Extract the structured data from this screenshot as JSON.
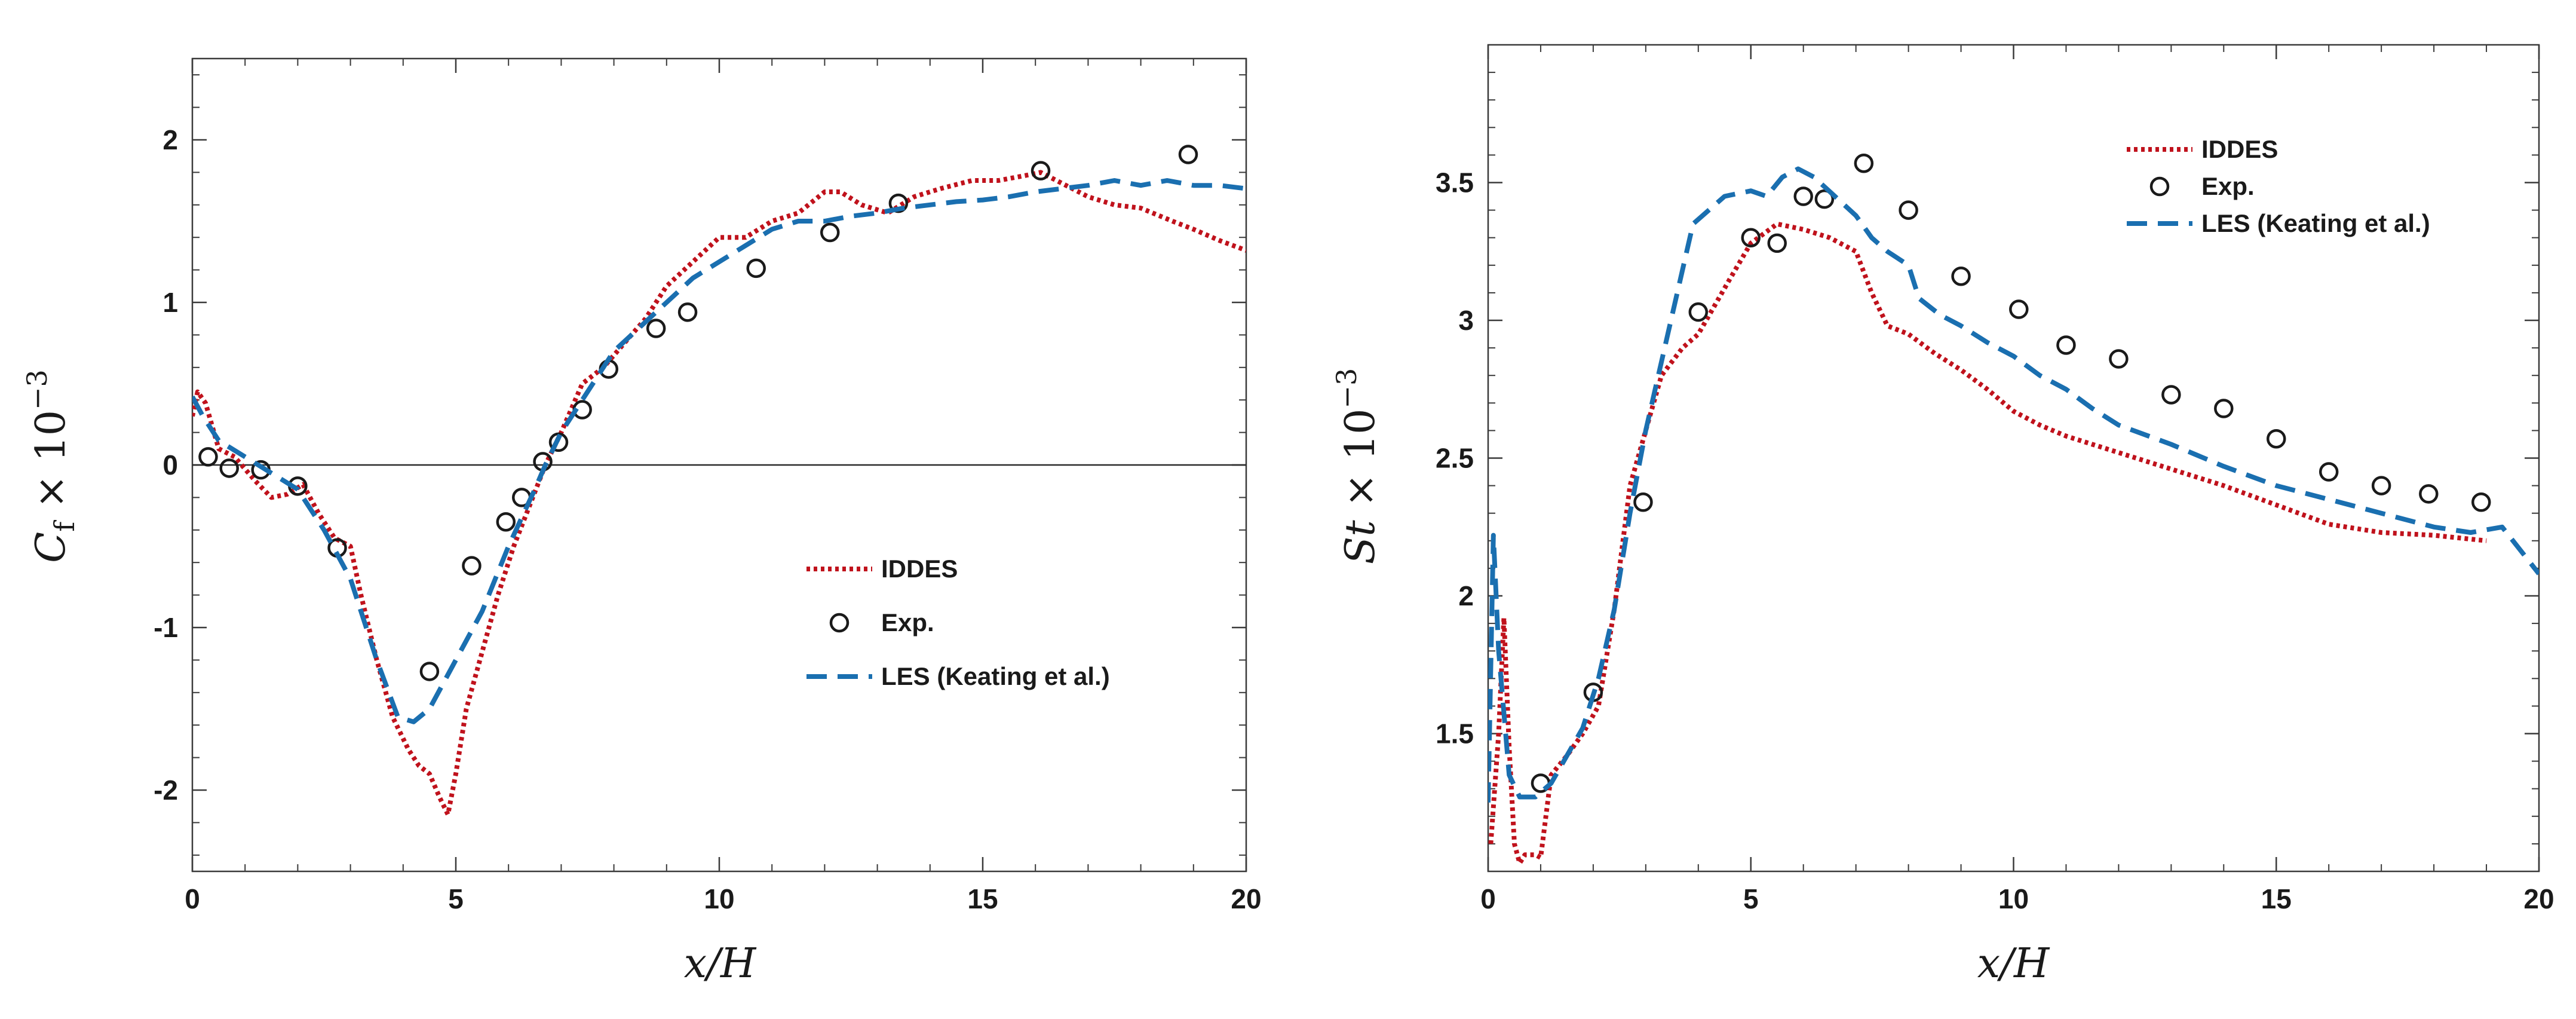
{
  "chart_data": [
    {
      "type": "line",
      "id": "cf",
      "title": "",
      "xlabel": "x/H",
      "ylabel": "C_f × 10^-3",
      "ylabel_parts": {
        "symbol": "C",
        "sub": "f",
        "times": "×",
        "base": "10",
        "exp": "−3"
      },
      "xlim": [
        0,
        20
      ],
      "ylim": [
        -2.5,
        2.5
      ],
      "x_ticks": [
        0,
        5,
        10,
        15,
        20
      ],
      "y_ticks": [
        -2,
        -1,
        0,
        1,
        2
      ],
      "x_tick_labels": [
        "0",
        "5",
        "10",
        "15",
        "20"
      ],
      "y_tick_labels": [
        "-2",
        "-1",
        "0",
        "1",
        "2"
      ],
      "zero_line": true,
      "legend_position": "center-right",
      "series": [
        {
          "name": "IDDES",
          "style": "dotted",
          "color": "#c0121c",
          "points": [
            [
              0,
              0.3
            ],
            [
              0.1,
              0.45
            ],
            [
              0.25,
              0.38
            ],
            [
              0.5,
              0.1
            ],
            [
              0.8,
              0.05
            ],
            [
              1.2,
              -0.1
            ],
            [
              1.5,
              -0.2
            ],
            [
              1.8,
              -0.18
            ],
            [
              2.1,
              -0.12
            ],
            [
              2.4,
              -0.3
            ],
            [
              2.7,
              -0.45
            ],
            [
              3.0,
              -0.5
            ],
            [
              3.2,
              -0.8
            ],
            [
              3.5,
              -1.2
            ],
            [
              3.8,
              -1.55
            ],
            [
              4.1,
              -1.75
            ],
            [
              4.3,
              -1.85
            ],
            [
              4.5,
              -1.9
            ],
            [
              4.7,
              -2.05
            ],
            [
              4.85,
              -2.15
            ],
            [
              5.0,
              -1.9
            ],
            [
              5.2,
              -1.5
            ],
            [
              5.5,
              -1.15
            ],
            [
              5.8,
              -0.8
            ],
            [
              6.1,
              -0.5
            ],
            [
              6.4,
              -0.25
            ],
            [
              6.7,
              0.0
            ],
            [
              7.0,
              0.2
            ],
            [
              7.4,
              0.5
            ],
            [
              7.8,
              0.6
            ],
            [
              8.2,
              0.75
            ],
            [
              8.6,
              0.9
            ],
            [
              9.0,
              1.1
            ],
            [
              9.5,
              1.25
            ],
            [
              10.0,
              1.4
            ],
            [
              10.5,
              1.4
            ],
            [
              11.0,
              1.5
            ],
            [
              11.5,
              1.55
            ],
            [
              12.0,
              1.68
            ],
            [
              12.3,
              1.68
            ],
            [
              12.7,
              1.6
            ],
            [
              13.2,
              1.55
            ],
            [
              13.7,
              1.65
            ],
            [
              14.2,
              1.7
            ],
            [
              14.8,
              1.75
            ],
            [
              15.3,
              1.75
            ],
            [
              15.8,
              1.78
            ],
            [
              16.1,
              1.8
            ],
            [
              16.4,
              1.75
            ],
            [
              17.0,
              1.65
            ],
            [
              17.5,
              1.6
            ],
            [
              18.0,
              1.58
            ],
            [
              18.6,
              1.5
            ],
            [
              19.0,
              1.45
            ],
            [
              19.5,
              1.38
            ],
            [
              20.0,
              1.32
            ]
          ]
        },
        {
          "name": "Exp.",
          "style": "circle",
          "color": "#1a1a1a",
          "points": [
            [
              0.3,
              0.05
            ],
            [
              0.7,
              -0.02
            ],
            [
              1.3,
              -0.03
            ],
            [
              2.0,
              -0.13
            ],
            [
              2.75,
              -0.51
            ],
            [
              4.5,
              -1.27
            ],
            [
              5.3,
              -0.62
            ],
            [
              5.95,
              -0.35
            ],
            [
              6.25,
              -0.2
            ],
            [
              6.65,
              0.02
            ],
            [
              6.95,
              0.14
            ],
            [
              7.4,
              0.34
            ],
            [
              7.9,
              0.59
            ],
            [
              8.8,
              0.84
            ],
            [
              9.4,
              0.94
            ],
            [
              10.7,
              1.21
            ],
            [
              12.1,
              1.43
            ],
            [
              13.4,
              1.61
            ],
            [
              16.1,
              1.81
            ],
            [
              18.9,
              1.91
            ]
          ]
        },
        {
          "name": "LES (Keating et al.)",
          "style": "dashed",
          "color": "#1a6fb0",
          "points": [
            [
              0,
              0.42
            ],
            [
              0.2,
              0.3
            ],
            [
              0.5,
              0.15
            ],
            [
              1.0,
              0.05
            ],
            [
              1.5,
              -0.05
            ],
            [
              2.0,
              -0.15
            ],
            [
              2.5,
              -0.4
            ],
            [
              3.0,
              -0.7
            ],
            [
              3.5,
              -1.2
            ],
            [
              3.9,
              -1.55
            ],
            [
              4.2,
              -1.58
            ],
            [
              4.5,
              -1.5
            ],
            [
              5.0,
              -1.2
            ],
            [
              5.5,
              -0.9
            ],
            [
              6.0,
              -0.5
            ],
            [
              6.5,
              -0.15
            ],
            [
              6.7,
              0.0
            ],
            [
              7.0,
              0.2
            ],
            [
              7.5,
              0.45
            ],
            [
              8.0,
              0.7
            ],
            [
              8.5,
              0.85
            ],
            [
              9.0,
              1.0
            ],
            [
              9.5,
              1.15
            ],
            [
              10.0,
              1.25
            ],
            [
              10.5,
              1.35
            ],
            [
              11.0,
              1.45
            ],
            [
              11.5,
              1.5
            ],
            [
              12.0,
              1.5
            ],
            [
              12.5,
              1.53
            ],
            [
              13.0,
              1.55
            ],
            [
              13.5,
              1.58
            ],
            [
              14.0,
              1.6
            ],
            [
              14.5,
              1.62
            ],
            [
              15.0,
              1.63
            ],
            [
              15.5,
              1.65
            ],
            [
              16.0,
              1.68
            ],
            [
              16.5,
              1.7
            ],
            [
              17.0,
              1.72
            ],
            [
              17.5,
              1.75
            ],
            [
              18.0,
              1.72
            ],
            [
              18.5,
              1.75
            ],
            [
              19.0,
              1.72
            ],
            [
              19.5,
              1.72
            ],
            [
              20.0,
              1.7
            ]
          ]
        }
      ]
    },
    {
      "type": "line",
      "id": "st",
      "title": "",
      "xlabel": "x/H",
      "ylabel": "St × 10^-3",
      "ylabel_parts": {
        "symbol": "St",
        "sub": "",
        "times": "×",
        "base": "10",
        "exp": "−3"
      },
      "xlim": [
        0,
        20
      ],
      "ylim": [
        1.0,
        4.0
      ],
      "x_ticks": [
        0,
        5,
        10,
        15,
        20
      ],
      "y_ticks": [
        1.5,
        2,
        2.5,
        3,
        3.5
      ],
      "x_tick_labels": [
        "0",
        "5",
        "10",
        "15",
        "20"
      ],
      "y_tick_labels": [
        "1.5",
        "2",
        "2.5",
        "3",
        "3.5"
      ],
      "zero_line": false,
      "legend_position": "top-right",
      "series": [
        {
          "name": "IDDES",
          "style": "dotted",
          "color": "#c0121c",
          "points": [
            [
              0.05,
              1.1
            ],
            [
              0.2,
              1.5
            ],
            [
              0.3,
              1.92
            ],
            [
              0.4,
              1.45
            ],
            [
              0.5,
              1.1
            ],
            [
              0.6,
              1.03
            ],
            [
              0.7,
              1.06
            ],
            [
              0.9,
              1.06
            ],
            [
              1.0,
              1.05
            ],
            [
              1.2,
              1.35
            ],
            [
              1.5,
              1.42
            ],
            [
              1.8,
              1.5
            ],
            [
              2.1,
              1.6
            ],
            [
              2.4,
              1.95
            ],
            [
              2.7,
              2.4
            ],
            [
              3.0,
              2.6
            ],
            [
              3.3,
              2.8
            ],
            [
              3.7,
              2.9
            ],
            [
              4.0,
              2.95
            ],
            [
              4.3,
              3.05
            ],
            [
              4.6,
              3.15
            ],
            [
              5.0,
              3.28
            ],
            [
              5.5,
              3.35
            ],
            [
              6.0,
              3.33
            ],
            [
              6.5,
              3.3
            ],
            [
              7.0,
              3.25
            ],
            [
              7.3,
              3.1
            ],
            [
              7.6,
              2.98
            ],
            [
              8.0,
              2.95
            ],
            [
              8.5,
              2.88
            ],
            [
              9.0,
              2.82
            ],
            [
              9.5,
              2.75
            ],
            [
              10.0,
              2.67
            ],
            [
              10.5,
              2.62
            ],
            [
              11.0,
              2.58
            ],
            [
              12.0,
              2.52
            ],
            [
              13.0,
              2.46
            ],
            [
              14.0,
              2.4
            ],
            [
              15.0,
              2.33
            ],
            [
              16.0,
              2.26
            ],
            [
              17.0,
              2.23
            ],
            [
              18.0,
              2.22
            ],
            [
              19.0,
              2.2
            ]
          ]
        },
        {
          "name": "Exp.",
          "style": "circle",
          "color": "#1a1a1a",
          "points": [
            [
              1.0,
              1.32
            ],
            [
              2.0,
              1.65
            ],
            [
              2.95,
              2.34
            ],
            [
              4.0,
              3.03
            ],
            [
              5.0,
              3.3
            ],
            [
              5.5,
              3.28
            ],
            [
              6.0,
              3.45
            ],
            [
              6.4,
              3.44
            ],
            [
              7.15,
              3.57
            ],
            [
              8.0,
              3.4
            ],
            [
              9.0,
              3.16
            ],
            [
              10.1,
              3.04
            ],
            [
              11.0,
              2.91
            ],
            [
              12.0,
              2.86
            ],
            [
              13.0,
              2.73
            ],
            [
              14.0,
              2.68
            ],
            [
              15.0,
              2.57
            ],
            [
              16.0,
              2.45
            ],
            [
              17.0,
              2.4
            ],
            [
              17.9,
              2.37
            ],
            [
              18.9,
              2.34
            ]
          ]
        },
        {
          "name": "LES (Keating et al.)",
          "style": "dashed",
          "color": "#1a6fb0",
          "points": [
            [
              0.0,
              1.25
            ],
            [
              0.1,
              2.22
            ],
            [
              0.2,
              1.8
            ],
            [
              0.4,
              1.35
            ],
            [
              0.6,
              1.27
            ],
            [
              0.9,
              1.27
            ],
            [
              1.2,
              1.32
            ],
            [
              1.5,
              1.42
            ],
            [
              1.8,
              1.52
            ],
            [
              2.1,
              1.7
            ],
            [
              2.4,
              1.95
            ],
            [
              2.7,
              2.3
            ],
            [
              3.0,
              2.6
            ],
            [
              3.3,
              2.85
            ],
            [
              3.6,
              3.1
            ],
            [
              3.9,
              3.35
            ],
            [
              4.2,
              3.4
            ],
            [
              4.5,
              3.45
            ],
            [
              5.0,
              3.47
            ],
            [
              5.3,
              3.45
            ],
            [
              5.6,
              3.52
            ],
            [
              5.9,
              3.55
            ],
            [
              6.2,
              3.52
            ],
            [
              6.6,
              3.45
            ],
            [
              7.0,
              3.38
            ],
            [
              7.3,
              3.3
            ],
            [
              7.6,
              3.25
            ],
            [
              8.0,
              3.2
            ],
            [
              8.2,
              3.08
            ],
            [
              8.6,
              3.02
            ],
            [
              9.0,
              2.98
            ],
            [
              9.5,
              2.92
            ],
            [
              10.0,
              2.87
            ],
            [
              10.5,
              2.8
            ],
            [
              11.0,
              2.75
            ],
            [
              11.5,
              2.68
            ],
            [
              12.0,
              2.62
            ],
            [
              13.0,
              2.55
            ],
            [
              14.0,
              2.47
            ],
            [
              15.0,
              2.4
            ],
            [
              16.0,
              2.35
            ],
            [
              17.0,
              2.3
            ],
            [
              18.0,
              2.25
            ],
            [
              18.7,
              2.23
            ],
            [
              19.3,
              2.25
            ],
            [
              20.0,
              2.08
            ]
          ]
        }
      ]
    }
  ]
}
